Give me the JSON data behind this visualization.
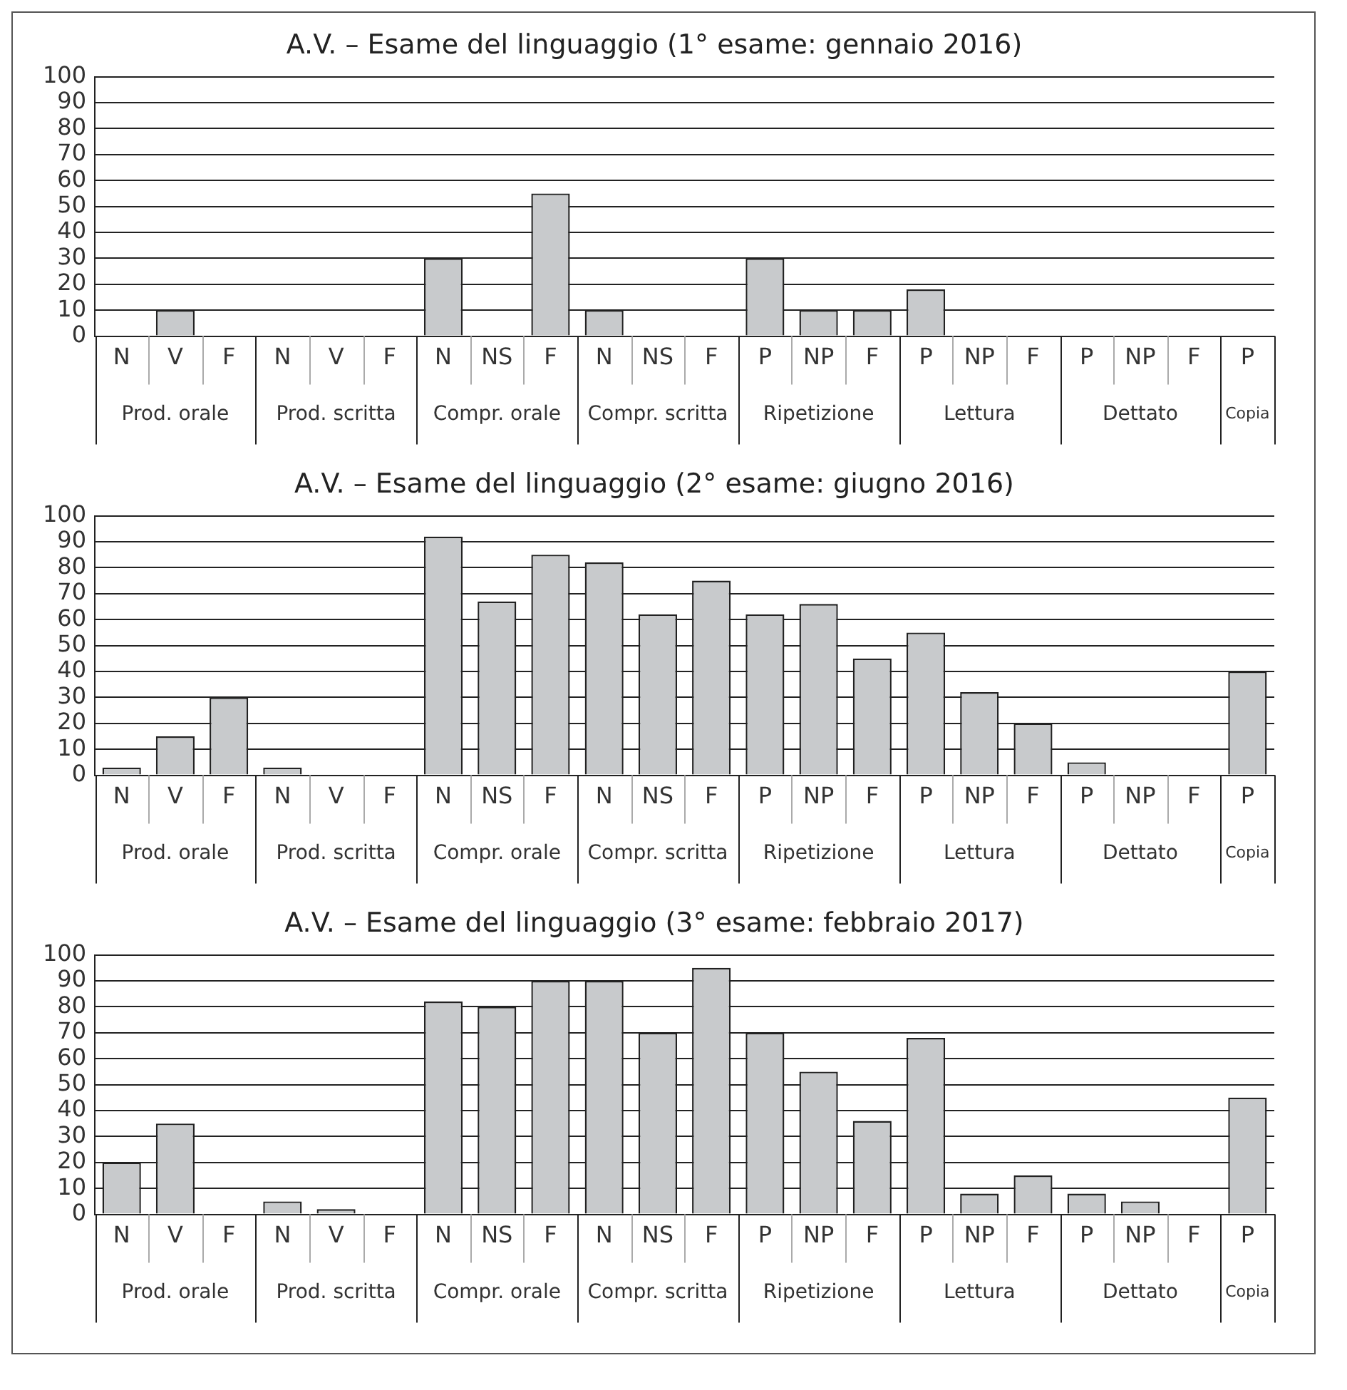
{
  "chart_data": [
    {
      "type": "bar",
      "title": "A.V. – Esame del linguaggio (1° esame: gennaio 2016)",
      "categories": [
        "N",
        "V",
        "F",
        "N",
        "V",
        "F",
        "N",
        "NS",
        "F",
        "N",
        "NS",
        "F",
        "P",
        "NP",
        "F",
        "P",
        "NP",
        "F",
        "P",
        "NP",
        "F",
        "P"
      ],
      "values": [
        0,
        10,
        0,
        0,
        0,
        0,
        30,
        0,
        55,
        10,
        0,
        0,
        30,
        10,
        10,
        18,
        0,
        0,
        0,
        0,
        0,
        0
      ],
      "color": "#c8cacc",
      "ylim": [
        0,
        100
      ],
      "yticks": [
        0,
        10,
        20,
        30,
        40,
        50,
        60,
        70,
        80,
        90,
        100
      ],
      "grid": "y",
      "legend": false,
      "annotations": [
        "Prod. orale",
        "Prod. scritta",
        "Compr. orale",
        "Compr. scritta",
        "Ripetizione",
        "Lettura",
        "Dettato",
        "Copia"
      ]
    },
    {
      "type": "bar",
      "title": "A.V. – Esame del linguaggio (2° esame: giugno 2016)",
      "categories": [
        "N",
        "V",
        "F",
        "N",
        "V",
        "F",
        "N",
        "NS",
        "F",
        "N",
        "NS",
        "F",
        "P",
        "NP",
        "F",
        "P",
        "NP",
        "F",
        "P",
        "NP",
        "F",
        "P"
      ],
      "values": [
        3,
        15,
        30,
        3,
        0,
        0,
        92,
        67,
        85,
        82,
        62,
        75,
        62,
        66,
        45,
        55,
        32,
        20,
        5,
        0,
        0,
        40
      ],
      "color": "#c8cacc",
      "ylim": [
        0,
        100
      ],
      "yticks": [
        0,
        10,
        20,
        30,
        40,
        50,
        60,
        70,
        80,
        90,
        100
      ],
      "grid": "y",
      "legend": false,
      "annotations": [
        "Prod. orale",
        "Prod. scritta",
        "Compr. orale",
        "Compr. scritta",
        "Ripetizione",
        "Lettura",
        "Dettato",
        "Copia"
      ]
    },
    {
      "type": "bar",
      "title": "A.V. – Esame del linguaggio (3° esame: febbraio 2017)",
      "categories": [
        "N",
        "V",
        "F",
        "N",
        "V",
        "F",
        "N",
        "NS",
        "F",
        "N",
        "NS",
        "F",
        "P",
        "NP",
        "F",
        "P",
        "NP",
        "F",
        "P",
        "NP",
        "F",
        "P"
      ],
      "values": [
        20,
        35,
        0,
        5,
        2,
        0,
        82,
        80,
        90,
        90,
        70,
        95,
        70,
        55,
        36,
        68,
        8,
        15,
        8,
        5,
        0,
        45
      ],
      "color": "#c8cacc",
      "ylim": [
        0,
        100
      ],
      "yticks": [
        0,
        10,
        20,
        30,
        40,
        50,
        60,
        70,
        80,
        90,
        100
      ],
      "grid": "y",
      "legend": false,
      "annotations": [
        "Prod. orale",
        "Prod. scritta",
        "Compr. orale",
        "Compr. scritta",
        "Ripetizione",
        "Lettura",
        "Dettato",
        "Copia"
      ]
    }
  ]
}
